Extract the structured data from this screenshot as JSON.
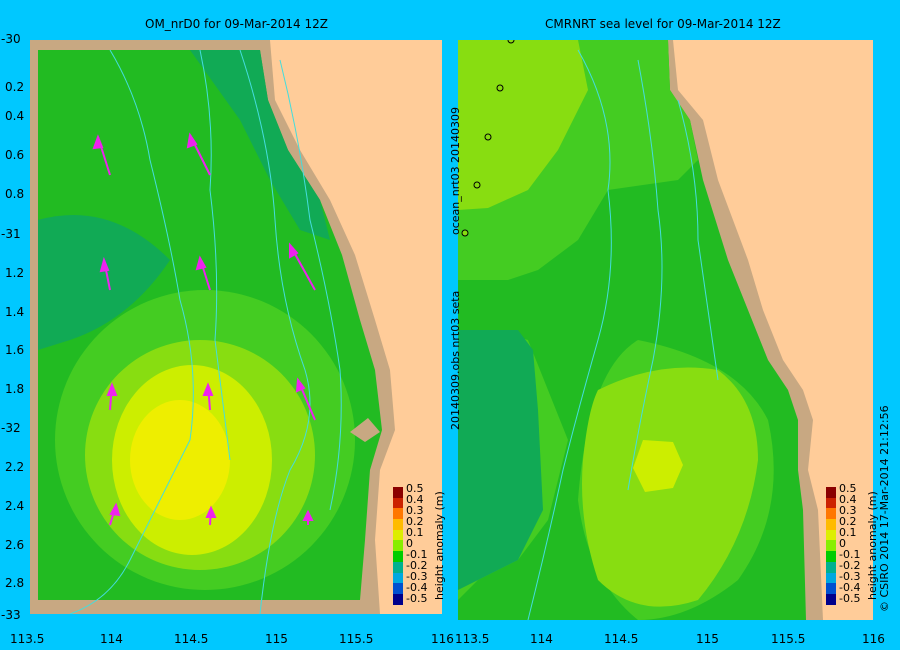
{
  "left_panel": {
    "title": "OM_nrD0  for 09-Mar-2014 12Z",
    "colorbar_label": "height anomaly (m)"
  },
  "right_panel": {
    "title": "CMRNRT sea level  for 09-Mar-2014 12Z",
    "side_text_1": "ocean_nrt03  20140309",
    "side_text_2": "20140309.obs  nrt03  seta",
    "colorbar_label": "height anomaly (m)"
  },
  "credit": "© CSIRO 2014   17-Mar-2014 21:12:56",
  "lat_ticks": [
    "-30",
    "0.2",
    "0.4",
    "0.6",
    "0.8",
    "-31",
    "1.2",
    "1.4",
    "1.6",
    "1.8",
    "-32",
    "2.2",
    "2.4",
    "2.6",
    "2.8",
    "-33"
  ],
  "left_lon_ticks": [
    "113.5",
    "114",
    "114.5",
    "115",
    "115.5",
    "116"
  ],
  "right_lon_ticks": [
    "113.5",
    "114",
    "114.5",
    "115",
    "115.5",
    "116"
  ],
  "colorbar_ticks": [
    "0.5",
    "0.4",
    "0.3",
    "0.2",
    "0.1",
    "0",
    "-0.1",
    "-0.2",
    "-0.3",
    "-0.4",
    "-0.5"
  ],
  "colorbar_colors": [
    "#8b0000",
    "#cc2200",
    "#ff7700",
    "#ffbb00",
    "#ddee00",
    "#88ee00",
    "#00cc00",
    "#00b090",
    "#00a8e0",
    "#0050d0",
    "#00008b"
  ],
  "colors": {
    "background": "#00c8ff",
    "land": "#ffcc99",
    "shelf": "#c8a882",
    "ocean_base": "#22bb22",
    "ocean_green_dark": "#11aa55",
    "anomaly_low": "#44cc22",
    "anomaly_mid": "#88dd11",
    "anomaly_high": "#ccee00",
    "anomaly_peak": "#eeee00",
    "bathymetry_line": "#44dddd",
    "current_vector": "#ee22ee"
  }
}
